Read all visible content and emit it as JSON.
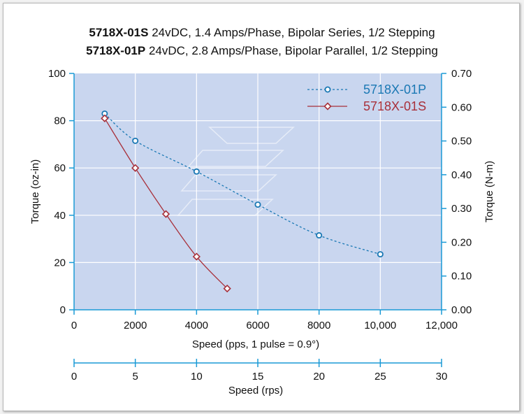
{
  "title": {
    "line1_bold": "5718X-01S",
    "line1_rest": " 24vDC, 1.4 Amps/Phase, Bipolar Series, 1/2 Stepping",
    "line2_bold": "5718X-01P",
    "line2_rest": " 24vDC, 2.8 Amps/Phase, Bipolar Parallel, 1/2 Stepping"
  },
  "colors": {
    "plot_background": "#c9d6ef",
    "grid": "#ffffff",
    "axis": "#1a9ad6",
    "series_p": "#1a78b4",
    "series_s": "#a8303a"
  },
  "chart_data": {
    "type": "line",
    "grid": true,
    "legend_position": "top-right",
    "x": {
      "label": "Speed (pps, 1 pulse = 0.9°)",
      "range": [
        0,
        12000
      ],
      "ticks": [
        0,
        2000,
        4000,
        6000,
        8000,
        10000,
        12000
      ],
      "tick_labels": [
        "0",
        "2000",
        "4000",
        "6000",
        "8000",
        "10,000",
        "12,000"
      ]
    },
    "x2": {
      "label": "Speed (rps)",
      "range": [
        0,
        30
      ],
      "ticks": [
        0,
        5,
        10,
        15,
        20,
        25,
        30
      ],
      "tick_labels": [
        "0",
        "5",
        "10",
        "15",
        "20",
        "25",
        "30"
      ]
    },
    "y_left": {
      "label": "Torque (oz-in)",
      "range": [
        0,
        100
      ],
      "ticks": [
        0,
        20,
        40,
        60,
        80,
        100
      ],
      "tick_labels": [
        "0",
        "20",
        "40",
        "60",
        "80",
        "100"
      ]
    },
    "y_right": {
      "label": "Torque (N-m)",
      "range": [
        0,
        0.7
      ],
      "ticks": [
        0,
        0.1,
        0.2,
        0.3,
        0.4,
        0.5,
        0.6,
        0.7
      ],
      "tick_labels": [
        "0.00",
        "0.10",
        "0.20",
        "0.30",
        "0.40",
        "0.50",
        "0.60",
        "0.70"
      ]
    },
    "series": [
      {
        "name": "5718X-01P",
        "style": "dashed",
        "marker": "circle",
        "color": "#1a78b4",
        "points": [
          [
            1000,
            83
          ],
          [
            2000,
            71.5
          ],
          [
            4000,
            58.5
          ],
          [
            6000,
            44.5
          ],
          [
            8000,
            31.5
          ],
          [
            10000,
            23.5
          ]
        ]
      },
      {
        "name": "5718X-01S",
        "style": "solid",
        "marker": "diamond",
        "color": "#a8303a",
        "points": [
          [
            1000,
            81
          ],
          [
            2000,
            60
          ],
          [
            3000,
            40.5
          ],
          [
            4000,
            22.5
          ],
          [
            5000,
            9
          ]
        ]
      }
    ]
  }
}
